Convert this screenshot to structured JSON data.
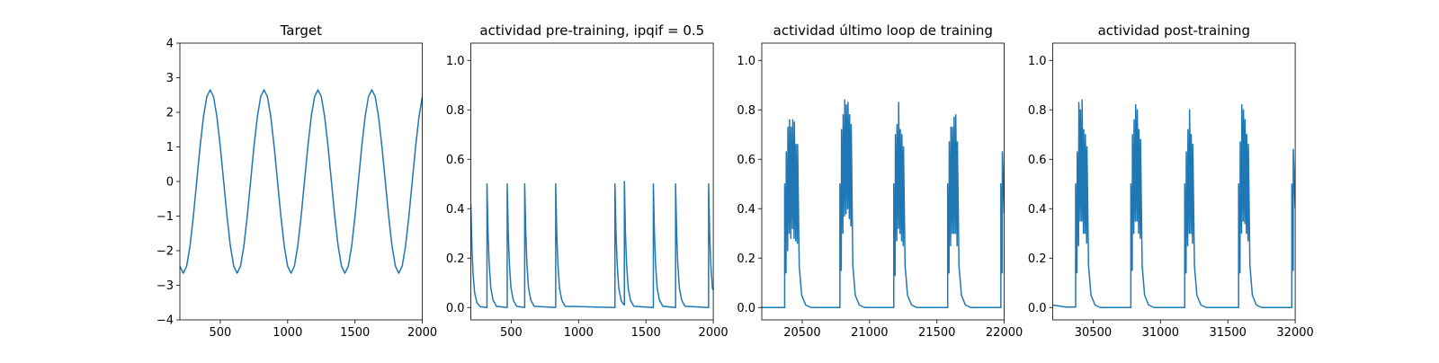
{
  "chart_data": [
    {
      "type": "line",
      "title": "Target",
      "color": "#1f77b4",
      "xlim": [
        200,
        2000
      ],
      "ylim": [
        -4,
        4
      ],
      "xticks": [
        500,
        1000,
        1500,
        2000
      ],
      "yticks": [
        {
          "value": -4,
          "label": "−4"
        },
        {
          "value": -3,
          "label": "−3"
        },
        {
          "value": -2,
          "label": "−2"
        },
        {
          "value": -1,
          "label": "−1"
        },
        0,
        1,
        2,
        3,
        4
      ],
      "x": [
        200,
        225,
        250,
        275,
        300,
        325,
        350,
        375,
        400,
        425,
        450,
        475,
        500,
        525,
        550,
        575,
        600,
        625,
        650,
        675,
        700,
        725,
        750,
        775,
        800,
        825,
        850,
        875,
        900,
        925,
        950,
        975,
        1000,
        1025,
        1050,
        1075,
        1100,
        1125,
        1150,
        1175,
        1200,
        1225,
        1250,
        1275,
        1300,
        1325,
        1350,
        1375,
        1400,
        1425,
        1450,
        1475,
        1500,
        1525,
        1550,
        1575,
        1600,
        1625,
        1650,
        1675,
        1700,
        1725,
        1750,
        1775,
        1800,
        1825,
        1850,
        1875,
        1900,
        1925,
        1950,
        1975,
        2000
      ],
      "values": [
        -2.45,
        -2.65,
        -2.45,
        -1.87,
        -1.01,
        0,
        1.01,
        1.87,
        2.45,
        2.65,
        2.45,
        1.87,
        1.01,
        0,
        -1.01,
        -1.87,
        -2.45,
        -2.65,
        -2.45,
        -1.87,
        -1.01,
        0,
        1.01,
        1.87,
        2.45,
        2.65,
        2.45,
        1.87,
        1.01,
        0,
        -1.01,
        -1.87,
        -2.45,
        -2.65,
        -2.45,
        -1.87,
        -1.01,
        0,
        1.01,
        1.87,
        2.45,
        2.65,
        2.45,
        1.87,
        1.01,
        0,
        -1.01,
        -1.87,
        -2.45,
        -2.65,
        -2.45,
        -1.87,
        -1.01,
        0,
        1.01,
        1.87,
        2.45,
        2.65,
        2.45,
        1.87,
        1.01,
        0,
        -1.01,
        -1.87,
        -2.45,
        -2.65,
        -2.45,
        -1.87,
        -1.01,
        0,
        1.01,
        1.87,
        2.45
      ]
    },
    {
      "type": "line",
      "title": "actividad pre-training, ipqif = 0.5",
      "color": "#1f77b4",
      "xlim": [
        200,
        2000
      ],
      "ylim": [
        -0.05,
        1.07
      ],
      "xticks": [
        500,
        1000,
        1500,
        2000
      ],
      "yticks": [
        {
          "value": 0,
          "label": "0.0"
        },
        {
          "value": 0.2,
          "label": "0.2"
        },
        {
          "value": 0.4,
          "label": "0.4"
        },
        {
          "value": 0.6,
          "label": "0.6"
        },
        {
          "value": 0.8,
          "label": "0.8"
        },
        {
          "value": 1,
          "label": "1.0"
        }
      ],
      "x": [
        200,
        208,
        216,
        228,
        245,
        270,
        320,
        320,
        328,
        336,
        348,
        365,
        390,
        470,
        470,
        478,
        486,
        498,
        515,
        540,
        600,
        600,
        608,
        616,
        628,
        645,
        670,
        830,
        830,
        838,
        846,
        858,
        875,
        900,
        1270,
        1270,
        1278,
        1286,
        1298,
        1315,
        1330,
        1340,
        1340,
        1348,
        1356,
        1368,
        1385,
        1410,
        1555,
        1555,
        1563,
        1571,
        1583,
        1600,
        1625,
        1720,
        1720,
        1728,
        1736,
        1748,
        1765,
        1790,
        1965,
        1965,
        1973,
        1981,
        1993,
        2000
      ],
      "values": [
        0.42,
        0.25,
        0.14,
        0.06,
        0.02,
        0.003,
        0,
        0.5,
        0.3,
        0.18,
        0.08,
        0.03,
        0.005,
        0,
        0.5,
        0.3,
        0.18,
        0.08,
        0.03,
        0.005,
        0,
        0.5,
        0.3,
        0.18,
        0.08,
        0.03,
        0.005,
        0,
        0.5,
        0.3,
        0.18,
        0.08,
        0.03,
        0.005,
        0,
        0.5,
        0.3,
        0.18,
        0.08,
        0.03,
        0.015,
        0.01,
        0.51,
        0.3,
        0.18,
        0.08,
        0.03,
        0.005,
        0,
        0.5,
        0.3,
        0.18,
        0.08,
        0.03,
        0.005,
        0,
        0.5,
        0.3,
        0.18,
        0.08,
        0.03,
        0.005,
        0,
        0.5,
        0.3,
        0.18,
        0.08,
        0.07
      ]
    },
    {
      "type": "line",
      "title": "actividad último loop de training",
      "color": "#1f77b4",
      "xlim": [
        20200,
        22000
      ],
      "ylim": [
        -0.05,
        1.07
      ],
      "xticks": [
        20500,
        21000,
        21500,
        22000
      ],
      "yticks": [
        {
          "value": 0,
          "label": "0.0"
        },
        {
          "value": 0.2,
          "label": "0.2"
        },
        {
          "value": 0.4,
          "label": "0.4"
        },
        {
          "value": 0.6,
          "label": "0.6"
        },
        {
          "value": 0.8,
          "label": "0.8"
        },
        {
          "value": 1,
          "label": "1.0"
        }
      ],
      "x": [
        20200,
        20370,
        20370,
        20380,
        20382,
        20392,
        20394,
        20404,
        20406,
        20416,
        20418,
        20428,
        20430,
        20440,
        20442,
        20452,
        20454,
        20464,
        20466,
        20478,
        20496,
        20526,
        20566,
        20780,
        20780,
        20790,
        20792,
        20802,
        20804,
        20814,
        20816,
        20826,
        20828,
        20838,
        20840,
        20850,
        20852,
        20862,
        20864,
        20876,
        20894,
        20924,
        20964,
        21180,
        21180,
        21190,
        21192,
        21202,
        21204,
        21214,
        21216,
        21226,
        21228,
        21238,
        21240,
        21250,
        21252,
        21264,
        21282,
        21312,
        21352,
        21580,
        21580,
        21590,
        21592,
        21602,
        21604,
        21614,
        21616,
        21626,
        21628,
        21638,
        21640,
        21650,
        21652,
        21664,
        21682,
        21712,
        21752,
        21975,
        21975,
        21985,
        21986,
        22000
      ],
      "values": [
        0,
        0,
        0.5,
        0.14,
        0.63,
        0.23,
        0.73,
        0.3,
        0.76,
        0.28,
        0.73,
        0.32,
        0.76,
        0.28,
        0.75,
        0.27,
        0.66,
        0.26,
        0.66,
        0.17,
        0.05,
        0.01,
        0,
        0,
        0.5,
        0.15,
        0.72,
        0.3,
        0.78,
        0.37,
        0.84,
        0.38,
        0.82,
        0.4,
        0.83,
        0.36,
        0.78,
        0.33,
        0.74,
        0.17,
        0.05,
        0.01,
        0,
        0,
        0.5,
        0.13,
        0.7,
        0.27,
        0.74,
        0.32,
        0.83,
        0.3,
        0.72,
        0.27,
        0.7,
        0.25,
        0.65,
        0.17,
        0.05,
        0.01,
        0,
        0,
        0.5,
        0.14,
        0.67,
        0.25,
        0.73,
        0.3,
        0.73,
        0.3,
        0.77,
        0.3,
        0.78,
        0.25,
        0.67,
        0.17,
        0.05,
        0.01,
        0,
        0,
        0.5,
        0.14,
        0.63,
        0.38
      ]
    },
    {
      "type": "line",
      "title": "actividad post-training",
      "color": "#1f77b4",
      "xlim": [
        30200,
        32000
      ],
      "ylim": [
        -0.05,
        1.07
      ],
      "xticks": [
        30500,
        31000,
        31500,
        32000
      ],
      "yticks": [
        {
          "value": 0,
          "label": "0.0"
        },
        {
          "value": 0.2,
          "label": "0.2"
        },
        {
          "value": 0.4,
          "label": "0.4"
        },
        {
          "value": 0.6,
          "label": "0.6"
        },
        {
          "value": 0.8,
          "label": "0.8"
        },
        {
          "value": 1,
          "label": "1.0"
        }
      ],
      "x": [
        30200,
        30300,
        30370,
        30370,
        30380,
        30382,
        30392,
        30394,
        30404,
        30406,
        30416,
        30418,
        30428,
        30430,
        30440,
        30442,
        30452,
        30454,
        30466,
        30484,
        30514,
        30554,
        30780,
        30780,
        30790,
        30792,
        30802,
        30804,
        30814,
        30816,
        30826,
        30828,
        30838,
        30840,
        30850,
        30852,
        30864,
        30882,
        30912,
        30952,
        31180,
        31180,
        31190,
        31192,
        31202,
        31204,
        31214,
        31216,
        31226,
        31228,
        31238,
        31240,
        31252,
        31270,
        31300,
        31340,
        31580,
        31580,
        31590,
        31592,
        31602,
        31604,
        31614,
        31616,
        31626,
        31628,
        31638,
        31640,
        31650,
        31652,
        31664,
        31682,
        31712,
        31752,
        31975,
        31975,
        31985,
        31986,
        32000
      ],
      "values": [
        0.01,
        0.002,
        0.002,
        0.5,
        0.14,
        0.63,
        0.25,
        0.83,
        0.35,
        0.8,
        0.35,
        0.84,
        0.3,
        0.72,
        0.3,
        0.7,
        0.26,
        0.65,
        0.17,
        0.05,
        0.01,
        0,
        0,
        0.5,
        0.15,
        0.7,
        0.3,
        0.76,
        0.35,
        0.82,
        0.35,
        0.8,
        0.3,
        0.72,
        0.28,
        0.68,
        0.17,
        0.05,
        0.01,
        0,
        0,
        0.5,
        0.14,
        0.63,
        0.25,
        0.72,
        0.3,
        0.8,
        0.3,
        0.7,
        0.26,
        0.66,
        0.17,
        0.05,
        0.01,
        0,
        0,
        0.5,
        0.14,
        0.67,
        0.3,
        0.82,
        0.35,
        0.8,
        0.34,
        0.76,
        0.3,
        0.7,
        0.27,
        0.66,
        0.17,
        0.05,
        0.01,
        0,
        0,
        0.5,
        0.15,
        0.64,
        0.4
      ]
    }
  ]
}
